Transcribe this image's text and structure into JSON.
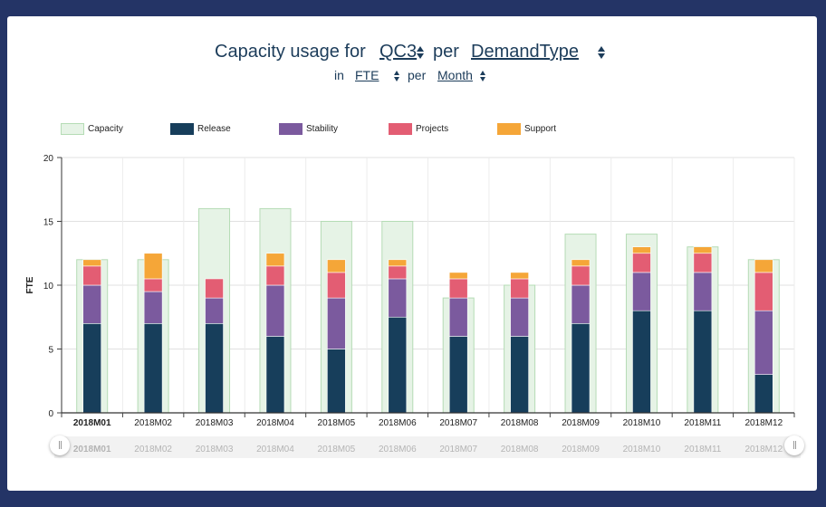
{
  "header": {
    "title_prefix": "Capacity usage for",
    "subject": "QC3",
    "per": "per",
    "dimension": "DemandType",
    "in": "in",
    "unit": "FTE",
    "per2": "per",
    "period": "Month"
  },
  "chart_data": {
    "type": "bar",
    "stacked": true,
    "categories": [
      "2018M01",
      "2018M02",
      "2018M03",
      "2018M04",
      "2018M05",
      "2018M06",
      "2018M07",
      "2018M08",
      "2018M09",
      "2018M10",
      "2018M11",
      "2018M12"
    ],
    "capacity": {
      "name": "Capacity",
      "color": "#e6f3e6",
      "border": "#b5dcb5",
      "values": [
        12,
        12,
        16,
        16,
        15,
        15,
        9,
        10,
        14,
        14,
        13,
        12
      ]
    },
    "series": [
      {
        "name": "Release",
        "color": "#173e5b",
        "values": [
          7,
          7,
          7,
          6,
          5,
          7.5,
          6,
          6,
          7,
          8,
          8,
          3
        ]
      },
      {
        "name": "Stability",
        "color": "#7b5a9e",
        "values": [
          3,
          2.5,
          2,
          4,
          4,
          3,
          3,
          3,
          3,
          3,
          3,
          5
        ]
      },
      {
        "name": "Projects",
        "color": "#e35d73",
        "values": [
          1.5,
          1,
          1.5,
          1.5,
          2,
          1,
          1.5,
          1.5,
          1.5,
          1.5,
          1.5,
          3
        ]
      },
      {
        "name": "Support",
        "color": "#f5a638",
        "values": [
          0.5,
          2,
          0,
          1,
          1,
          0.5,
          0.5,
          0.5,
          0.5,
          0.5,
          0.5,
          1
        ]
      }
    ],
    "ylabel": "FTE",
    "ylim": [
      0,
      20
    ],
    "yticks": [
      0,
      5,
      10,
      15,
      20
    ],
    "grid": true,
    "legend_position": "top",
    "selected_category": "2018M01"
  }
}
